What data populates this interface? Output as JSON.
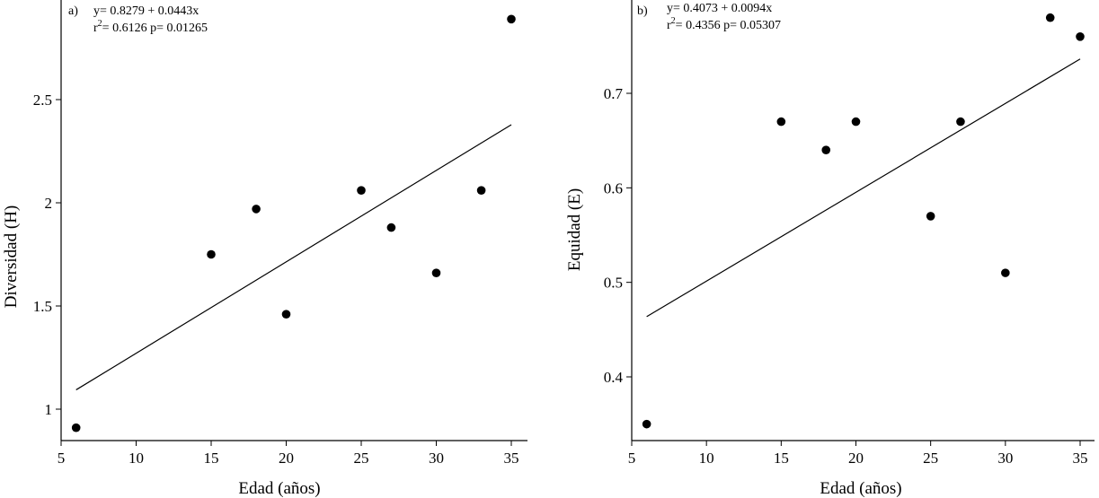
{
  "chart_data": [
    {
      "type": "scatter",
      "panel_label": "a)",
      "equation": "y= 0.8279 + 0.0443x",
      "stats_r": "r",
      "stats_sup": "2",
      "stats_rest": "= 0.6126  p= 0.01265",
      "xlabel": "Edad (años)",
      "ylabel": "Diversidad (H)",
      "xlim": [
        5,
        36
      ],
      "ylim": [
        0.85,
        2.95
      ],
      "xticks": [
        5,
        10,
        15,
        20,
        25,
        30,
        35
      ],
      "yticks": [
        1,
        1.5,
        2,
        2.5
      ],
      "ytick_labels": [
        "1",
        "1.5",
        "2",
        "2.5"
      ],
      "points": [
        {
          "x": 6,
          "y": 0.91
        },
        {
          "x": 15,
          "y": 1.75
        },
        {
          "x": 18,
          "y": 1.97
        },
        {
          "x": 20,
          "y": 1.46
        },
        {
          "x": 25,
          "y": 2.06
        },
        {
          "x": 27,
          "y": 1.88
        },
        {
          "x": 30,
          "y": 1.66
        },
        {
          "x": 33,
          "y": 2.06
        },
        {
          "x": 35,
          "y": 2.89
        }
      ],
      "regression": {
        "intercept": 0.8279,
        "slope": 0.0443,
        "x_range": [
          6,
          35
        ]
      }
    },
    {
      "type": "scatter",
      "panel_label": "b)",
      "equation": "y= 0.4073 + 0.0094x",
      "stats_r": "r",
      "stats_sup": "2",
      "stats_rest": "= 0.4356  p= 0.05307",
      "xlabel": "Edad (años)",
      "ylabel": "Equidad (E)",
      "xlim": [
        5,
        36
      ],
      "ylim": [
        0.33,
        0.8
      ],
      "xticks": [
        5,
        10,
        15,
        20,
        25,
        30,
        35
      ],
      "yticks": [
        0.4,
        0.5,
        0.6,
        0.7
      ],
      "ytick_labels": [
        "0.4",
        "0.5",
        "0.6",
        "0.7"
      ],
      "points": [
        {
          "x": 6,
          "y": 0.35
        },
        {
          "x": 15,
          "y": 0.67
        },
        {
          "x": 18,
          "y": 0.64
        },
        {
          "x": 20,
          "y": 0.67
        },
        {
          "x": 25,
          "y": 0.57
        },
        {
          "x": 27,
          "y": 0.67
        },
        {
          "x": 30,
          "y": 0.51
        },
        {
          "x": 33,
          "y": 0.78
        },
        {
          "x": 35,
          "y": 0.76
        }
      ],
      "regression": {
        "intercept": 0.4073,
        "slope": 0.0094,
        "x_range": [
          6,
          35
        ]
      }
    }
  ]
}
